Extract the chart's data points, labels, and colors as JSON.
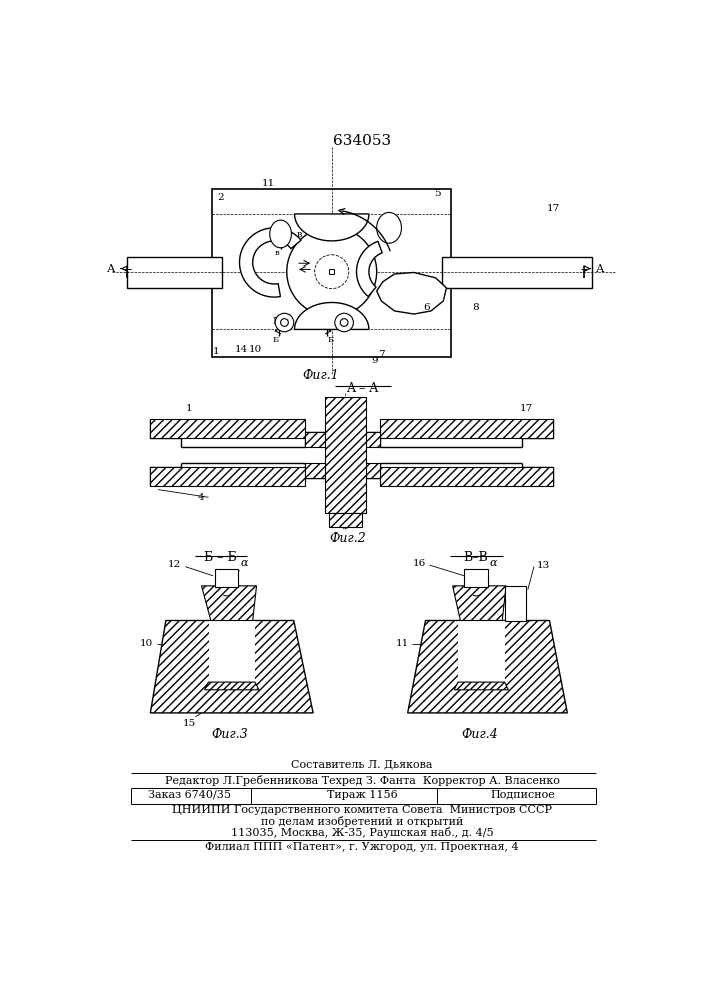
{
  "patent_number": "634053",
  "background_color": "#ffffff",
  "line_color": "#000000",
  "fig1_label": "Фиг.1",
  "fig2_label": "Фиг.2",
  "fig3_label": "Фиг.3",
  "fig4_label": "Фиг.4",
  "section_aa": "A – A",
  "section_bb": "Б – Б",
  "section_vv": "В–В",
  "footer_line0": "Составитель Л. Дьякова",
  "footer_line1": "Редактор Л.Гребенникова Техред З. Фанта  Корректор А. Власенко",
  "footer_line2a": "Заказ 6740/35",
  "footer_line2b": "Тираж 1156",
  "footer_line2c": "Подписное",
  "footer_line3": "ЦНИИПИ Государственного комитета Совета  Министров СССР",
  "footer_line4": "по делам изобретений и открытий",
  "footer_line5": "113035, Москва, Ж-35, Раушская наб., д. 4/5",
  "footer_line6": "Филиал ППП «Патент», г. Ужгород, ул. Проектная, 4"
}
